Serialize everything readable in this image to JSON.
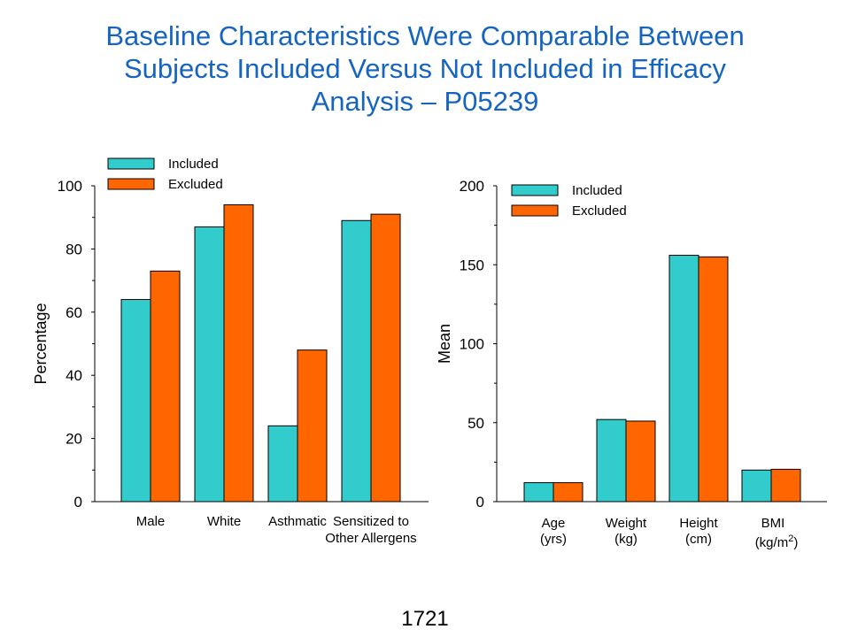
{
  "title": {
    "lines": [
      "Baseline Characteristics Were Comparable Between",
      "Subjects Included Versus Not Included in Efficacy",
      "Analysis – P05239"
    ]
  },
  "colors": {
    "included": "#33CCCC",
    "excluded": "#FF6600",
    "title": "#1565C0"
  },
  "footer": {
    "text": "1721"
  },
  "chart_data": [
    {
      "type": "bar",
      "ylabel": "Percentage",
      "xlabel": "",
      "ylim": [
        0,
        100
      ],
      "yticks": [
        "0",
        "20",
        "40",
        "60",
        "80",
        "100"
      ],
      "categories": [
        [
          "Male"
        ],
        [
          "White"
        ],
        [
          "Asthmatic"
        ],
        [
          "Sensitized to",
          "Other Allergens"
        ]
      ],
      "series": [
        {
          "name": "Included",
          "values": [
            64,
            87,
            24,
            89
          ]
        },
        {
          "name": "Excluded",
          "values": [
            73,
            94,
            48,
            91
          ]
        }
      ],
      "legend": "top-left",
      "grid": false
    },
    {
      "type": "bar",
      "ylabel": "Mean",
      "xlabel": "",
      "ylim": [
        0,
        200
      ],
      "yticks": [
        "0",
        "50",
        "100",
        "150",
        "200"
      ],
      "categories": [
        [
          "Age",
          "(yrs)"
        ],
        [
          "Weight",
          "(kg)"
        ],
        [
          "Height",
          "(cm)"
        ],
        [
          "BMI",
          "(kg/m",
          "2",
          ")"
        ]
      ],
      "series": [
        {
          "name": "Included",
          "values": [
            12,
            52,
            156,
            20
          ]
        },
        {
          "name": "Excluded",
          "values": [
            12,
            51,
            155,
            20.5
          ]
        }
      ],
      "legend": "top-left",
      "grid": false
    }
  ]
}
